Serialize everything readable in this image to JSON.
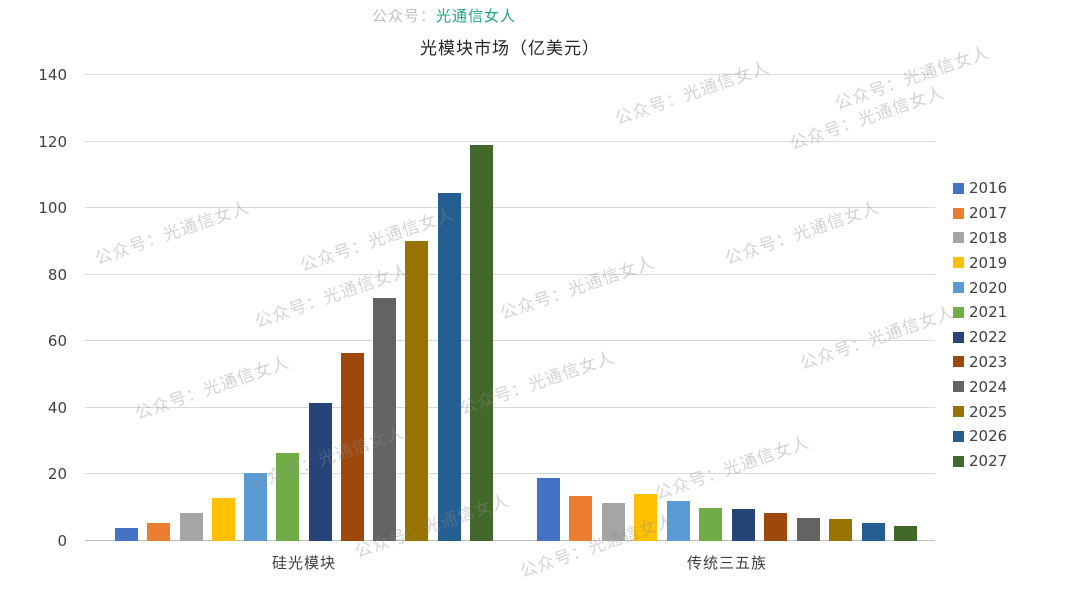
{
  "title": "光模块市场（亿美元）",
  "watermark": {
    "text": "公众号：光通信女人",
    "prefix": "公众号：",
    "name": "光通信女人",
    "name_color": "#1ba784"
  },
  "chart_data": {
    "type": "bar",
    "title": "光模块市场（亿美元）",
    "categories": [
      "硅光模块",
      "传统三五族"
    ],
    "series": [
      {
        "name": "2016",
        "color": "#4472C4",
        "values": [
          4,
          19
        ]
      },
      {
        "name": "2017",
        "color": "#ED7D31",
        "values": [
          5.5,
          13.5
        ]
      },
      {
        "name": "2018",
        "color": "#A5A5A5",
        "values": [
          8.5,
          11.5
        ]
      },
      {
        "name": "2019",
        "color": "#FFC000",
        "values": [
          13,
          14
        ]
      },
      {
        "name": "2020",
        "color": "#5B9BD5",
        "values": [
          20.5,
          12
        ]
      },
      {
        "name": "2021",
        "color": "#70AD47",
        "values": [
          26.5,
          10
        ]
      },
      {
        "name": "2022",
        "color": "#264478",
        "values": [
          41.5,
          9.5
        ]
      },
      {
        "name": "2023",
        "color": "#9E480E",
        "values": [
          56.5,
          8.5
        ]
      },
      {
        "name": "2024",
        "color": "#636363",
        "values": [
          73,
          7
        ]
      },
      {
        "name": "2025",
        "color": "#997300",
        "values": [
          90,
          6.5
        ]
      },
      {
        "name": "2026",
        "color": "#255E91",
        "values": [
          104.5,
          5.5
        ]
      },
      {
        "name": "2027",
        "color": "#43682B",
        "values": [
          119,
          4.5
        ]
      }
    ],
    "ylim": [
      0,
      140
    ],
    "yticks": [
      0,
      20,
      40,
      60,
      80,
      100,
      120,
      140
    ],
    "grid": true,
    "legend_position": "right"
  }
}
